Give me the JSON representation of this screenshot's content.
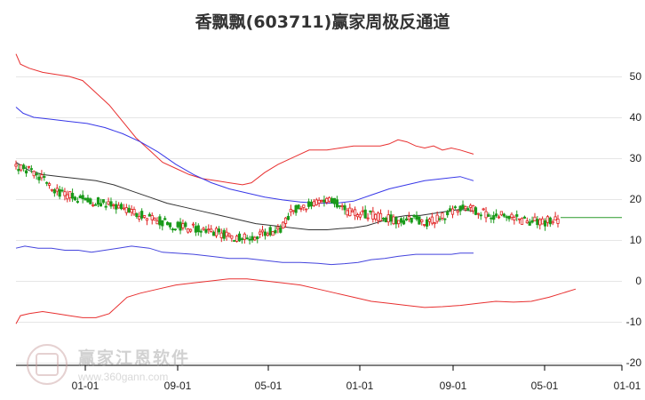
{
  "page": {
    "title": "香飘飘(603711)赢家周极反通道"
  },
  "watermark": {
    "name": "赢家江恩软件",
    "url": "www.360gann.com"
  },
  "chart_data": {
    "type": "line",
    "title": "香飘飘(603711)赢家周极反通道",
    "x_tick_labels": [
      "01-01",
      "09-01",
      "05-01",
      "01-01",
      "09-01",
      "05-01",
      "01-01"
    ],
    "y_tick_labels": [
      "50",
      "40",
      "30",
      "20",
      "10",
      "0",
      "-10",
      "-20"
    ],
    "y_ticks": [
      50,
      40,
      30,
      20,
      10,
      0,
      -10,
      -20
    ],
    "ylim": [
      -21.5,
      56
    ],
    "n_weeks": 212,
    "grid": false,
    "legend": "none",
    "series": [
      {
        "color": "#e83030",
        "values": [
          [
            0,
            55.5
          ],
          [
            5,
            53
          ],
          [
            15,
            52
          ],
          [
            30,
            51
          ],
          [
            45,
            50.5
          ],
          [
            60,
            50
          ],
          [
            75,
            49
          ],
          [
            90,
            46
          ],
          [
            105,
            43
          ],
          [
            120,
            39
          ],
          [
            135,
            35
          ],
          [
            150,
            32
          ],
          [
            165,
            29
          ],
          [
            180,
            27.5
          ],
          [
            195,
            26
          ],
          [
            210,
            25
          ],
          [
            225,
            24.5
          ],
          [
            240,
            24
          ],
          [
            255,
            23.5
          ],
          [
            265,
            24
          ],
          [
            280,
            26.5
          ],
          [
            295,
            28.5
          ],
          [
            315,
            30.5
          ],
          [
            330,
            32
          ],
          [
            350,
            32
          ],
          [
            365,
            32.5
          ],
          [
            380,
            33
          ],
          [
            395,
            33
          ],
          [
            410,
            33
          ],
          [
            420,
            33.5
          ],
          [
            430,
            34.5
          ],
          [
            440,
            34
          ],
          [
            450,
            33
          ],
          [
            460,
            32.5
          ],
          [
            470,
            33
          ],
          [
            480,
            32
          ],
          [
            490,
            32.5
          ],
          [
            500,
            32
          ],
          [
            515,
            31
          ]
        ]
      },
      {
        "color": "#3838e8",
        "values": [
          [
            0,
            42.5
          ],
          [
            8,
            41
          ],
          [
            20,
            40
          ],
          [
            40,
            39.5
          ],
          [
            60,
            39
          ],
          [
            80,
            38.5
          ],
          [
            100,
            37.5
          ],
          [
            120,
            36
          ],
          [
            140,
            34
          ],
          [
            160,
            31.5
          ],
          [
            180,
            28.5
          ],
          [
            200,
            26
          ],
          [
            220,
            24
          ],
          [
            240,
            22.5
          ],
          [
            260,
            21.5
          ],
          [
            280,
            20.5
          ],
          [
            300,
            19.8
          ],
          [
            320,
            19.3
          ],
          [
            340,
            19
          ],
          [
            360,
            19
          ],
          [
            380,
            19.5
          ],
          [
            400,
            21
          ],
          [
            420,
            22.5
          ],
          [
            440,
            23.5
          ],
          [
            460,
            24.5
          ],
          [
            480,
            25
          ],
          [
            500,
            25.5
          ],
          [
            515,
            24.5
          ]
        ]
      },
      {
        "color": "#4444dd",
        "values": [
          [
            0,
            8
          ],
          [
            10,
            8.5
          ],
          [
            25,
            8
          ],
          [
            40,
            8
          ],
          [
            55,
            7.5
          ],
          [
            70,
            7.5
          ],
          [
            85,
            7
          ],
          [
            100,
            7.5
          ],
          [
            115,
            8
          ],
          [
            130,
            8.5
          ],
          [
            150,
            8
          ],
          [
            165,
            7
          ],
          [
            180,
            6.8
          ],
          [
            200,
            6.5
          ],
          [
            220,
            6
          ],
          [
            240,
            5.5
          ],
          [
            260,
            5.5
          ],
          [
            280,
            5
          ],
          [
            300,
            4.5
          ],
          [
            320,
            4.5
          ],
          [
            340,
            4.3
          ],
          [
            355,
            4
          ],
          [
            370,
            4.2
          ],
          [
            385,
            4.5
          ],
          [
            400,
            5.2
          ],
          [
            415,
            5.5
          ],
          [
            430,
            6
          ],
          [
            450,
            6.5
          ],
          [
            470,
            6.5
          ],
          [
            490,
            6.5
          ],
          [
            500,
            6.8
          ],
          [
            515,
            6.8
          ]
        ]
      },
      {
        "color": "#e83030",
        "values": [
          [
            0,
            -10.5
          ],
          [
            5,
            -8.5
          ],
          [
            15,
            -8
          ],
          [
            30,
            -7.5
          ],
          [
            45,
            -8
          ],
          [
            60,
            -8.5
          ],
          [
            75,
            -9
          ],
          [
            90,
            -9
          ],
          [
            105,
            -8
          ],
          [
            115,
            -6
          ],
          [
            125,
            -4
          ],
          [
            140,
            -3
          ],
          [
            160,
            -2
          ],
          [
            180,
            -1
          ],
          [
            200,
            -0.5
          ],
          [
            220,
            0
          ],
          [
            240,
            0.5
          ],
          [
            260,
            0.5
          ],
          [
            280,
            0
          ],
          [
            300,
            -0.5
          ],
          [
            320,
            -1
          ],
          [
            340,
            -2
          ],
          [
            360,
            -3
          ],
          [
            380,
            -4
          ],
          [
            400,
            -5
          ],
          [
            420,
            -5.5
          ],
          [
            440,
            -6
          ],
          [
            460,
            -6.5
          ],
          [
            480,
            -6.3
          ],
          [
            500,
            -6
          ],
          [
            520,
            -5.5
          ],
          [
            540,
            -5
          ],
          [
            560,
            -5.2
          ],
          [
            580,
            -5
          ],
          [
            600,
            -4
          ],
          [
            615,
            -3
          ],
          [
            630,
            -2
          ]
        ]
      },
      {
        "color": "#333333",
        "values": [
          [
            0,
            29
          ],
          [
            15,
            27
          ],
          [
            30,
            26
          ],
          [
            50,
            25.5
          ],
          [
            70,
            25
          ],
          [
            90,
            24.5
          ],
          [
            110,
            23.5
          ],
          [
            130,
            22
          ],
          [
            150,
            20.5
          ],
          [
            170,
            19
          ],
          [
            190,
            18
          ],
          [
            210,
            17
          ],
          [
            230,
            16
          ],
          [
            250,
            15
          ],
          [
            270,
            14
          ],
          [
            290,
            13.5
          ],
          [
            310,
            13
          ],
          [
            330,
            12.5
          ],
          [
            350,
            12.5
          ],
          [
            365,
            12.8
          ],
          [
            380,
            13
          ],
          [
            395,
            13.5
          ],
          [
            410,
            14.5
          ],
          [
            425,
            15.5
          ],
          [
            440,
            16
          ],
          [
            455,
            16
          ],
          [
            470,
            16.5
          ],
          [
            485,
            17
          ],
          [
            500,
            17.5
          ],
          [
            515,
            17
          ]
        ]
      }
    ],
    "candles_seed": 20230711,
    "price_path": [
      [
        0,
        27.5
      ],
      [
        10,
        27
      ],
      [
        20,
        25
      ],
      [
        30,
        22
      ],
      [
        40,
        21
      ],
      [
        50,
        20
      ],
      [
        60,
        19.5
      ],
      [
        70,
        18.5
      ],
      [
        80,
        18
      ],
      [
        90,
        16.5
      ],
      [
        100,
        15.5
      ],
      [
        110,
        14.5
      ],
      [
        120,
        13.5
      ],
      [
        130,
        13
      ],
      [
        140,
        13
      ],
      [
        150,
        12
      ],
      [
        160,
        11
      ],
      [
        170,
        10.5
      ],
      [
        180,
        11
      ],
      [
        190,
        12
      ],
      [
        200,
        12.5
      ],
      [
        210,
        17.5
      ],
      [
        220,
        18.5
      ],
      [
        230,
        19
      ],
      [
        240,
        19.5
      ],
      [
        250,
        17
      ],
      [
        260,
        16.5
      ],
      [
        270,
        16
      ],
      [
        280,
        15.5
      ],
      [
        290,
        14.5
      ],
      [
        300,
        15.5
      ],
      [
        310,
        14
      ],
      [
        320,
        15.5
      ],
      [
        330,
        17
      ],
      [
        340,
        18.5
      ],
      [
        350,
        17
      ],
      [
        360,
        16
      ],
      [
        370,
        16
      ],
      [
        380,
        15
      ],
      [
        390,
        14.5
      ],
      [
        400,
        14.5
      ],
      [
        410,
        15
      ]
    ],
    "last_price": 15.5
  }
}
